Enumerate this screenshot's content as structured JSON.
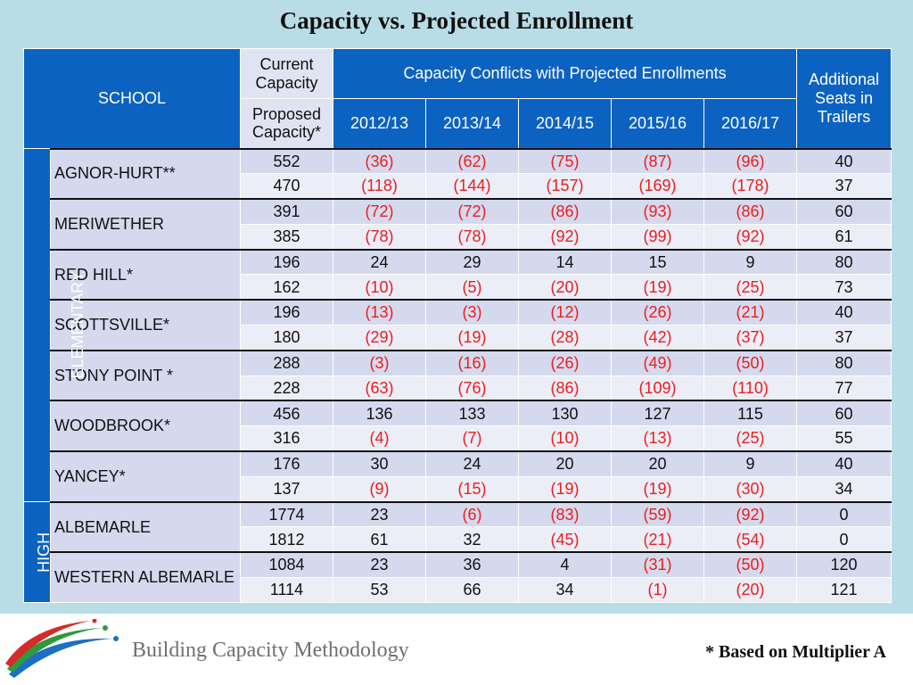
{
  "title": "Capacity vs. Projected Enrollment",
  "header": {
    "school": "SCHOOL",
    "current_capacity": "Current Capacity",
    "proposed_capacity": "Proposed Capacity*",
    "conflicts": "Capacity Conflicts with Projected Enrollments",
    "additional": "Additional Seats in Trailers",
    "years": [
      "2012/13",
      "2013/14",
      "2014/15",
      "2015/16",
      "2016/17"
    ]
  },
  "categories": {
    "elementary": "ELEMENTARY",
    "high": "HIGH"
  },
  "schools": [
    {
      "name": "AGNOR-HURT**",
      "rows": [
        [
          "552",
          "(36)",
          "(62)",
          "(75)",
          "(87)",
          "(96)",
          "40"
        ],
        [
          "470",
          "(118)",
          "(144)",
          "(157)",
          "(169)",
          "(178)",
          "37"
        ]
      ]
    },
    {
      "name": "MERIWETHER",
      "rows": [
        [
          "391",
          "(72)",
          "(72)",
          "(86)",
          "(93)",
          "(86)",
          "60"
        ],
        [
          "385",
          "(78)",
          "(78)",
          "(92)",
          "(99)",
          "(92)",
          "61"
        ]
      ]
    },
    {
      "name": "RED HILL*",
      "rows": [
        [
          "196",
          "24",
          "29",
          "14",
          "15",
          "9",
          "80"
        ],
        [
          "162",
          "(10)",
          "(5)",
          "(20)",
          "(19)",
          "(25)",
          "73"
        ]
      ]
    },
    {
      "name": "SCOTTSVILLE*",
      "rows": [
        [
          "196",
          "(13)",
          "(3)",
          "(12)",
          "(26)",
          "(21)",
          "40"
        ],
        [
          "180",
          "(29)",
          "(19)",
          "(28)",
          "(42)",
          "(37)",
          "37"
        ]
      ]
    },
    {
      "name": "STONY POINT *",
      "rows": [
        [
          "288",
          "(3)",
          "(16)",
          "(26)",
          "(49)",
          "(50)",
          "80"
        ],
        [
          "228",
          "(63)",
          "(76)",
          "(86)",
          "(109)",
          "(110)",
          "77"
        ]
      ]
    },
    {
      "name": "WOODBROOK*",
      "rows": [
        [
          "456",
          "136",
          "133",
          "130",
          "127",
          "115",
          "60"
        ],
        [
          "316",
          "(4)",
          "(7)",
          "(10)",
          "(13)",
          "(25)",
          "55"
        ]
      ]
    },
    {
      "name": "YANCEY*",
      "rows": [
        [
          "176",
          "30",
          "24",
          "20",
          "20",
          "9",
          "40"
        ],
        [
          "137",
          "(9)",
          "(15)",
          "(19)",
          "(19)",
          "(30)",
          "34"
        ]
      ]
    },
    {
      "name": "ALBEMARLE",
      "rows": [
        [
          "1774",
          "23",
          "(6)",
          "(83)",
          "(59)",
          "(92)",
          "0"
        ],
        [
          "1812",
          "61",
          "32",
          "(45)",
          "(21)",
          "(54)",
          "0"
        ]
      ]
    },
    {
      "name": "WESTERN ALBEMARLE",
      "rows": [
        [
          "1084",
          "23",
          "36",
          "4",
          "(31)",
          "(50)",
          "120"
        ],
        [
          "1114",
          "53",
          "66",
          "34",
          "(1)",
          "(20)",
          "121"
        ]
      ]
    }
  ],
  "colors": {
    "header_blue": "#0c62c1",
    "negative": "#e8201e",
    "background": "#b9dde7"
  },
  "footer": {
    "title": "Building Capacity Methodology",
    "note": "* Based on Multiplier A",
    "logo": "swoosh-logo"
  }
}
